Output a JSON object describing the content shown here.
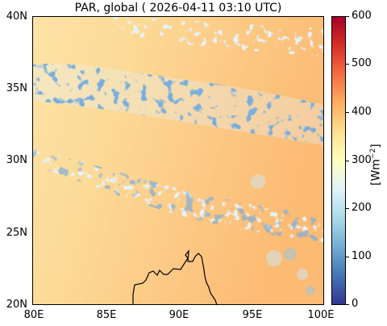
{
  "title": "PAR, global ( 2026-04-11 03:10 UTC)",
  "map": {
    "lon_range": [
      80,
      100
    ],
    "lat_range": [
      20,
      40
    ],
    "x_ticks": [
      "80E",
      "85E",
      "90E",
      "95E",
      "100E"
    ],
    "y_ticks": [
      "40N",
      "35N",
      "30N",
      "25N",
      "20N"
    ],
    "coastline": "Bay of Bengal coast near 86-94E, 20-23N"
  },
  "colorbar": {
    "ticks": [
      "600",
      "500",
      "400",
      "300",
      "200",
      "100",
      "0"
    ],
    "range": [
      0,
      600
    ],
    "unit": "[Wm$^{-2}$]",
    "unit_display": "[Wm",
    "unit_sup": "−2",
    "unit_close": "]",
    "colormap": "RdYlBu_r",
    "colors": [
      "#313695",
      "#4575b4",
      "#74add1",
      "#abd9e9",
      "#e0f3f8",
      "#ffffbf",
      "#fee090",
      "#fdae61",
      "#f46d43",
      "#d73027",
      "#a50026"
    ]
  }
}
